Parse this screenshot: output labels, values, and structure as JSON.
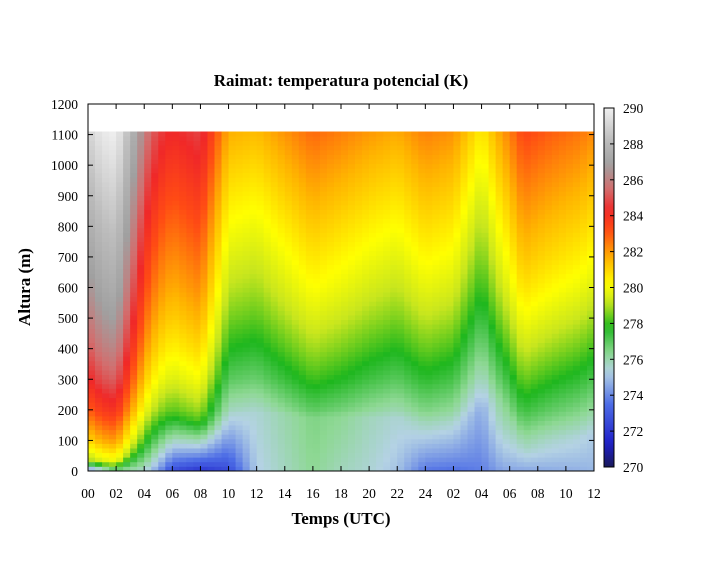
{
  "chart_data": {
    "type": "heatmap",
    "title": "Raimat: temperatura potencial (K)",
    "xlabel": "Temps (UTC)",
    "ylabel": "Altura (m)",
    "x_hours": [
      0,
      36
    ],
    "x_ticks": [
      {
        "h": 0,
        "label": "00"
      },
      {
        "h": 2,
        "label": "02"
      },
      {
        "h": 4,
        "label": "04"
      },
      {
        "h": 6,
        "label": "06"
      },
      {
        "h": 8,
        "label": "08"
      },
      {
        "h": 10,
        "label": "10"
      },
      {
        "h": 12,
        "label": "12"
      },
      {
        "h": 14,
        "label": "14"
      },
      {
        "h": 16,
        "label": "16"
      },
      {
        "h": 18,
        "label": "18"
      },
      {
        "h": 20,
        "label": "20"
      },
      {
        "h": 22,
        "label": "22"
      },
      {
        "h": 24,
        "label": "24"
      },
      {
        "h": 26,
        "label": "02"
      },
      {
        "h": 28,
        "label": "04"
      },
      {
        "h": 30,
        "label": "06"
      },
      {
        "h": 32,
        "label": "08"
      },
      {
        "h": 34,
        "label": "10"
      },
      {
        "h": 36,
        "label": "12"
      }
    ],
    "ylim": [
      0,
      1200
    ],
    "y_ticks": [
      0,
      100,
      200,
      300,
      400,
      500,
      600,
      700,
      800,
      900,
      1000,
      1100,
      1200
    ],
    "data_top_m": 1110,
    "colorbar": {
      "range": [
        270,
        290
      ],
      "ticks": [
        270,
        272,
        274,
        276,
        278,
        280,
        282,
        284,
        286,
        288,
        290
      ],
      "stops": [
        {
          "v": 270,
          "color": "#1a1a5a"
        },
        {
          "v": 271.3,
          "color": "#1f1fc8"
        },
        {
          "v": 273.5,
          "color": "#4d6de6"
        },
        {
          "v": 275.3,
          "color": "#b4d2e4"
        },
        {
          "v": 276.3,
          "color": "#8ed894"
        },
        {
          "v": 277.8,
          "color": "#1eb71e"
        },
        {
          "v": 279.2,
          "color": "#c8e61e"
        },
        {
          "v": 280.2,
          "color": "#ffff00"
        },
        {
          "v": 281.6,
          "color": "#ffb400"
        },
        {
          "v": 283.2,
          "color": "#ff4b14"
        },
        {
          "v": 284.3,
          "color": "#f02828"
        },
        {
          "v": 285.5,
          "color": "#d26e6e"
        },
        {
          "v": 286.8,
          "color": "#a0a0a0"
        },
        {
          "v": 288.2,
          "color": "#bcbcbc"
        },
        {
          "v": 290,
          "color": "#f0f0f0"
        }
      ]
    },
    "profile_columns": [
      {
        "h": 0,
        "sfc": 273.5,
        "inv_top": 40,
        "theta_top": 279
      },
      {
        "h": 1,
        "sfc": 274.5,
        "inv_top": 30,
        "theta_top": 279.5
      },
      {
        "h": 2,
        "sfc": 276,
        "inv_top": 30,
        "theta_top": 279.8
      },
      {
        "h": 4,
        "sfc": 275.5,
        "inv_top": 90,
        "theta_top": 277.8
      },
      {
        "h": 5,
        "sfc": 274.2,
        "inv_top": 150,
        "theta_top": 277.8
      },
      {
        "h": 6,
        "sfc": 272.5,
        "inv_top": 180,
        "theta_top": 277.9
      },
      {
        "h": 8,
        "sfc": 271.8,
        "inv_top": 160,
        "theta_top": 278.1
      },
      {
        "h": 10,
        "sfc": 272.5,
        "inv_top": 185,
        "theta_top": 275.5
      },
      {
        "h": 12,
        "sfc": 275.2,
        "inv_top": 195,
        "theta_top": 275.5
      },
      {
        "h": 16,
        "sfc": 276.3,
        "inv_top": 175,
        "theta_top": 276.5
      },
      {
        "h": 18,
        "sfc": 275.8,
        "inv_top": 180,
        "theta_top": 276.3
      },
      {
        "h": 20,
        "sfc": 275.5,
        "inv_top": 175,
        "theta_top": 275.8
      },
      {
        "h": 22,
        "sfc": 275,
        "inv_top": 175,
        "theta_top": 275.5
      },
      {
        "h": 24,
        "sfc": 273.6,
        "inv_top": 155,
        "theta_top": 275.8
      },
      {
        "h": 26,
        "sfc": 273.5,
        "inv_top": 160,
        "theta_top": 275.6
      },
      {
        "h": 28,
        "sfc": 273.8,
        "inv_top": 200,
        "theta_top": 274.6
      },
      {
        "h": 29.5,
        "sfc": 274.5,
        "inv_top": 240,
        "theta_top": 276.5
      },
      {
        "h": 31,
        "sfc": 274.5,
        "inv_top": 80,
        "theta_top": 275.8
      },
      {
        "h": 33,
        "sfc": 274.6,
        "inv_top": 100,
        "theta_top": 275.6
      },
      {
        "h": 35,
        "sfc": 274.7,
        "inv_top": 110,
        "theta_top": 275.4
      },
      {
        "h": 36,
        "sfc": 274.8,
        "inv_top": 120,
        "theta_top": 275.2
      }
    ],
    "upper_layers": [
      {
        "h": 0,
        "gradient_k_per_100m": [
          3.2,
          2.0,
          1.3,
          0.9,
          0.7,
          0.6,
          0.5,
          0.5,
          0.5,
          0.5
        ]
      },
      {
        "h": 18,
        "gradient_k_per_100m": [
          2.6,
          1.8,
          1.1,
          0.8,
          0.7,
          0.6,
          0.5,
          0.5,
          0.5,
          0.5
        ]
      },
      {
        "h": 36,
        "gradient_k_per_100m": [
          0.6,
          1.2,
          1.0,
          0.9,
          0.8,
          0.7,
          0.6,
          0.5,
          0.5,
          0.5
        ]
      }
    ]
  }
}
